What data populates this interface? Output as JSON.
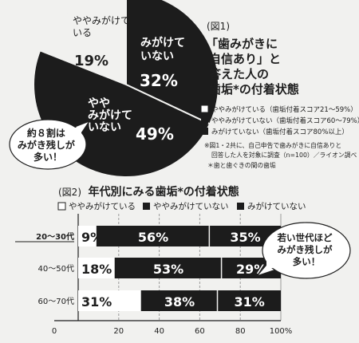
{
  "chart_data": [
    {
      "type": "pie",
      "title": "「歯みがきに自信あり」と答えた人の歯垢*の付着状態",
      "figure_label": "(図1)",
      "slices": [
        {
          "label_lines": [
            "ややみがけて",
            "いる"
          ],
          "value": 19,
          "display": "19%",
          "color": "#f1f1ef"
        },
        {
          "label_lines": [
            "みがけて",
            "いない"
          ],
          "value": 32,
          "display": "32%",
          "color": "#1c1c1c"
        },
        {
          "label_lines": [
            "やや",
            "みがけて",
            "いない"
          ],
          "value": 49,
          "display": "49%",
          "color": "#1c1c1c"
        }
      ],
      "legend": [
        {
          "text": "ややみがけている（歯垢付着スコア21〜59%）",
          "color": "#ffffff"
        },
        {
          "text": "ややみがけていない（歯垢付着スコア60〜79%）",
          "color": "#1c1c1c"
        },
        {
          "text": "みがけていない（歯垢付着スコア80%以上）",
          "color": "#1c1c1c"
        }
      ],
      "notes": [
        "※図1・2共に、自己申告で歯みがきに自信ありと",
        "回答した人を対象に調査（n=100）／ライオン調べ",
        "＊歯と歯ぐきの間の歯垢"
      ],
      "callout_lines": [
        "約８割は",
        "みがき残しが",
        "多い！"
      ]
    },
    {
      "type": "bar",
      "orientation": "horizontal-stacked",
      "title": "年代別にみる歯垢*の付着状態",
      "figure_label": "(図2)",
      "categories": [
        "20〜30代",
        "40〜50代",
        "60〜70代"
      ],
      "series": [
        {
          "name": "ややみがけている",
          "values": [
            9,
            18,
            31
          ],
          "color": "#ffffff"
        },
        {
          "name": "ややみがけていない",
          "values": [
            56,
            53,
            38
          ],
          "color": "#1c1c1c"
        },
        {
          "name": "みがけていない",
          "values": [
            35,
            29,
            31
          ],
          "color": "#1c1c1c"
        }
      ],
      "value_labels": [
        [
          "9%",
          "56%",
          "35%"
        ],
        [
          "18%",
          "53%",
          "29%"
        ],
        [
          "31%",
          "38%",
          "31%"
        ]
      ],
      "xlim": [
        0,
        100
      ],
      "xticks": [
        "0",
        "20",
        "40",
        "60",
        "80",
        "100%"
      ],
      "callout_lines": [
        "若い世代ほど",
        "みがき残しが",
        "多い！"
      ]
    }
  ]
}
